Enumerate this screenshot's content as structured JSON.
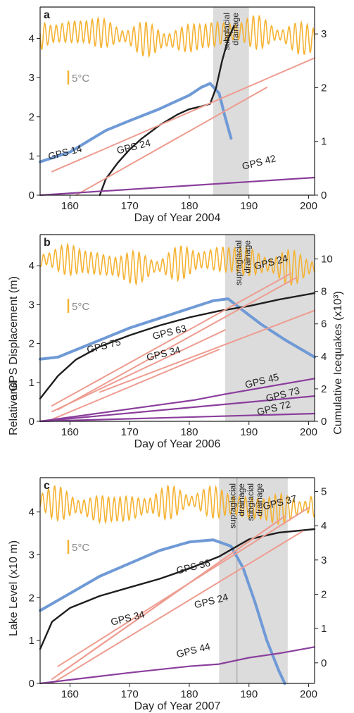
{
  "colors": {
    "temperature": "#f5b333",
    "lake": "#6f9ad6",
    "icequakes": "#1e1e1e",
    "gps_lower": "#ee9c90",
    "gps_upper": "#8a3e9c",
    "drainage_shade": "#dcdcdc"
  },
  "shared": {
    "left_axis_label": "Relative GPS Displacement (m) and Lake Level (x10 m)",
    "left_axis_label_parts": [
      "Relative GPS Displacement (m)",
      "and",
      "Lake Level (x10 m)"
    ],
    "right_axis_label": "Cumulative Icequakes (x10³)",
    "temperature_scale_label": "5°C"
  },
  "chart_data": [
    {
      "type": "line",
      "panel": "a",
      "xlabel": "Day of Year 2004",
      "xlim": [
        155,
        201
      ],
      "xticks": [
        160,
        170,
        180,
        190,
        200
      ],
      "ylim_left": [
        0,
        4.8
      ],
      "yticks_left": [
        0,
        1,
        2,
        3,
        4
      ],
      "ylim_right": [
        0,
        3.5
      ],
      "yticks_right": [
        0,
        1,
        2,
        3
      ],
      "shaded_region": [
        184,
        190
      ],
      "shaded_labels": [
        {
          "text": "subglacial drainage",
          "x": 185
        }
      ],
      "temperature_oscillation": true,
      "series": [
        {
          "name": "Lake level",
          "axis": "left",
          "role": "lake",
          "x": [
            155,
            160,
            166,
            170,
            175,
            180,
            182,
            183.5,
            185,
            186,
            187
          ],
          "y": [
            0.85,
            1.1,
            1.65,
            1.9,
            2.2,
            2.55,
            2.75,
            2.85,
            2.6,
            2.0,
            1.45
          ]
        },
        {
          "name": "Cumulative icequakes",
          "axis": "right",
          "role": "icequakes",
          "x": [
            165,
            166,
            168,
            170,
            172,
            175,
            178,
            180,
            182,
            183.5,
            184.5,
            185.5,
            186.5,
            187.5
          ],
          "y": [
            0.0,
            0.3,
            0.6,
            0.85,
            1.05,
            1.3,
            1.5,
            1.6,
            1.65,
            1.7,
            2.0,
            2.5,
            2.9,
            3.15
          ]
        },
        {
          "name": "GPS 14",
          "axis": "left",
          "role": "gps_lower",
          "x": [
            157,
            201
          ],
          "y": [
            0.6,
            3.5
          ]
        },
        {
          "name": "GPS 24",
          "axis": "left",
          "role": "gps_lower",
          "x": [
            161,
            193
          ],
          "y": [
            0.0,
            2.75
          ]
        },
        {
          "name": "GPS 42",
          "axis": "left",
          "role": "gps_upper",
          "x": [
            155,
            201
          ],
          "y": [
            0.0,
            0.45
          ]
        }
      ],
      "labels": [
        {
          "text": "GPS 14",
          "x": 156.5,
          "y": 0.9
        },
        {
          "text": "GPS 24",
          "x": 168,
          "y": 1.05
        },
        {
          "text": "GPS 42",
          "x": 189,
          "y": 0.65
        }
      ]
    },
    {
      "type": "line",
      "panel": "b",
      "xlabel": "Day of Year 2006",
      "xlim": [
        155,
        201
      ],
      "xticks": [
        160,
        170,
        180,
        190,
        200
      ],
      "ylim_left": [
        0,
        4.8
      ],
      "yticks_left": [
        0,
        1,
        2,
        3,
        4
      ],
      "ylim_right": [
        0,
        11.5
      ],
      "yticks_right": [
        0,
        2,
        4,
        6,
        8,
        10
      ],
      "shaded_region": [
        186,
        201
      ],
      "shaded_labels": [
        {
          "text": "supraglacial drainage",
          "x": 187
        }
      ],
      "temperature_oscillation": true,
      "series": [
        {
          "name": "Lake level",
          "axis": "left",
          "role": "lake",
          "x": [
            155,
            158,
            162,
            166,
            170,
            175,
            180,
            184,
            186.5,
            189,
            192,
            196,
            201
          ],
          "y": [
            1.6,
            1.65,
            1.9,
            2.15,
            2.4,
            2.65,
            2.9,
            3.1,
            3.15,
            2.85,
            2.5,
            2.1,
            1.65
          ]
        },
        {
          "name": "Cumulative icequakes",
          "axis": "right",
          "role": "icequakes",
          "x": [
            155,
            158,
            161,
            165,
            170,
            175,
            180,
            185,
            190,
            195,
            201
          ],
          "y": [
            1.4,
            2.8,
            3.8,
            4.6,
            5.3,
            5.9,
            6.4,
            6.8,
            7.1,
            7.5,
            7.9
          ]
        },
        {
          "name": "GPS 24",
          "axis": "left",
          "role": "gps_lower",
          "x": [
            157,
            197
          ],
          "y": [
            0.4,
            3.8
          ]
        },
        {
          "name": "GPS 24",
          "axis": "left",
          "role": "gps_lower",
          "x": [
            158,
            198
          ],
          "y": [
            0.3,
            3.7
          ]
        },
        {
          "name": "GPS 63",
          "axis": "left",
          "role": "gps_lower",
          "x": [
            157,
            186
          ],
          "y": [
            0.25,
            2.35
          ]
        },
        {
          "name": "GPS 75",
          "axis": "left",
          "role": "gps_lower",
          "x": [
            157,
            185
          ],
          "y": [
            0.05,
            1.85
          ]
        },
        {
          "name": "GPS 34",
          "axis": "left",
          "role": "gps_lower",
          "x": [
            165,
            201
          ],
          "y": [
            0.75,
            2.85
          ]
        },
        {
          "name": "GPS 45",
          "axis": "left",
          "role": "gps_upper",
          "x": [
            155,
            181,
            186,
            201
          ],
          "y": [
            0.0,
            0.55,
            0.7,
            1.1
          ]
        },
        {
          "name": "GPS 73",
          "axis": "left",
          "role": "gps_upper",
          "x": [
            155,
            201
          ],
          "y": [
            0.0,
            0.65
          ]
        },
        {
          "name": "GPS 72",
          "axis": "left",
          "role": "gps_upper",
          "x": [
            155,
            201
          ],
          "y": [
            0.0,
            0.2
          ]
        }
      ],
      "labels": [
        {
          "text": "GPS 24",
          "x": 191,
          "y": 3.9
        },
        {
          "text": "GPS 75",
          "x": 163,
          "y": 1.75
        },
        {
          "text": "GPS 63",
          "x": 174,
          "y": 2.1
        },
        {
          "text": "GPS 34",
          "x": 173,
          "y": 1.55
        },
        {
          "text": "GPS 45",
          "x": 189.5,
          "y": 0.85
        },
        {
          "text": "GPS 73",
          "x": 193,
          "y": 0.5
        },
        {
          "text": "GPS 72",
          "x": 191.5,
          "y": 0.15
        }
      ]
    },
    {
      "type": "line",
      "panel": "c",
      "xlabel": "Day of Year 2007",
      "xlim": [
        155,
        201
      ],
      "xticks": [
        160,
        170,
        180,
        190,
        200
      ],
      "ylim_left": [
        0,
        4.8
      ],
      "yticks_left": [
        0,
        1,
        2,
        3,
        4
      ],
      "ylim_right": [
        -0.6,
        5.4
      ],
      "yticks_right": [
        0,
        1,
        2,
        3,
        4,
        5
      ],
      "shaded_region": [
        185,
        196.5
      ],
      "divider_x": 188,
      "shaded_labels": [
        {
          "text": "supraglacial drainage",
          "x": 186
        },
        {
          "text": "subglacial drainage",
          "x": 189
        }
      ],
      "temperature_oscillation": true,
      "series": [
        {
          "name": "Lake level",
          "axis": "left",
          "role": "lake",
          "x": [
            155,
            160,
            165,
            170,
            175,
            180,
            184,
            187,
            189,
            191,
            193,
            195,
            196
          ],
          "y": [
            1.7,
            2.1,
            2.5,
            2.8,
            3.1,
            3.3,
            3.35,
            3.2,
            2.7,
            1.9,
            1.0,
            0.3,
            0.0
          ]
        },
        {
          "name": "Cumulative icequakes",
          "axis": "right",
          "role": "icequakes",
          "x": [
            155,
            157,
            160,
            165,
            170,
            175,
            180,
            185,
            190,
            195,
            201
          ],
          "y": [
            0.4,
            1.2,
            1.6,
            1.95,
            2.2,
            2.45,
            2.75,
            3.1,
            3.6,
            3.8,
            3.9
          ]
        },
        {
          "name": "GPS 37",
          "axis": "left",
          "role": "gps_lower",
          "x": [
            158,
            200
          ],
          "y": [
            0.4,
            4.1
          ]
        },
        {
          "name": "GPS 36",
          "axis": "left",
          "role": "gps_lower",
          "x": [
            158,
            196
          ],
          "y": [
            0.2,
            3.9
          ]
        },
        {
          "name": "GPS 34",
          "axis": "left",
          "role": "gps_lower",
          "x": [
            157,
            199
          ],
          "y": [
            0.0,
            3.55
          ]
        },
        {
          "name": "GPS 24",
          "axis": "left",
          "role": "gps_lower",
          "x": [
            157,
            195
          ],
          "y": [
            0.1,
            3.8
          ]
        },
        {
          "name": "GPS 44",
          "axis": "left",
          "role": "gps_upper",
          "x": [
            155,
            170,
            180,
            185,
            190,
            195,
            201
          ],
          "y": [
            0.0,
            0.25,
            0.4,
            0.45,
            0.6,
            0.7,
            0.85
          ]
        }
      ],
      "labels": [
        {
          "text": "GPS 37",
          "x": 192.5,
          "y": 4.05
        },
        {
          "text": "GPS 36",
          "x": 178,
          "y": 2.55
        },
        {
          "text": "GPS 24",
          "x": 181,
          "y": 1.75
        },
        {
          "text": "GPS 34",
          "x": 167,
          "y": 1.35
        },
        {
          "text": "GPS 44",
          "x": 178,
          "y": 0.6
        }
      ]
    }
  ]
}
